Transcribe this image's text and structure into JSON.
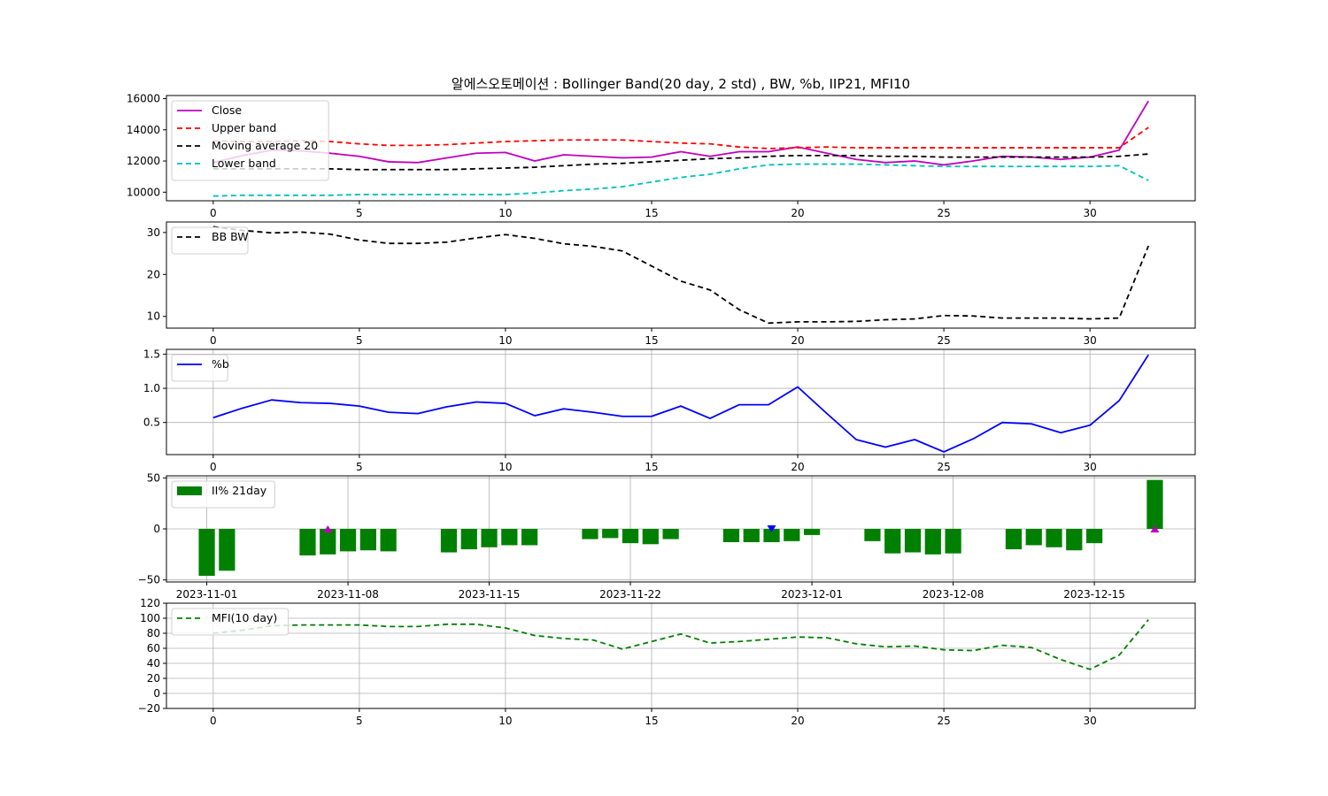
{
  "title": "알에스오토메이션 : Bollinger Band(20 day, 2 std) , BW, %b, IIP21, MFI10",
  "chart_data": [
    {
      "id": "price",
      "type": "line",
      "x": [
        0,
        1,
        2,
        3,
        4,
        5,
        6,
        7,
        8,
        9,
        10,
        11,
        12,
        13,
        14,
        15,
        16,
        17,
        18,
        19,
        20,
        21,
        22,
        23,
        24,
        25,
        26,
        27,
        28,
        29,
        30,
        31,
        32
      ],
      "xlim": [
        -1.6,
        33.6
      ],
      "xticks": [
        0,
        5,
        10,
        15,
        20,
        25,
        30
      ],
      "ylim": [
        9450,
        16200
      ],
      "yticks": [
        10000,
        12000,
        14000,
        16000
      ],
      "grid": false,
      "legend": "upper-left",
      "series": [
        {
          "name": "Close",
          "color": "#bf00bf",
          "dash": "",
          "values": [
            11900,
            12350,
            12700,
            12650,
            12500,
            12300,
            11950,
            11900,
            12200,
            12500,
            12550,
            12000,
            12400,
            12300,
            12200,
            12250,
            12600,
            12300,
            12600,
            12600,
            12900,
            12500,
            12100,
            11900,
            12000,
            11750,
            12000,
            12300,
            12250,
            12100,
            12250,
            12700,
            15850
          ]
        },
        {
          "name": "Upper band",
          "color": "#ff0000",
          "dash": "6,4",
          "values": [
            13300,
            13250,
            13250,
            13300,
            13250,
            13100,
            13000,
            13000,
            13050,
            13150,
            13250,
            13300,
            13350,
            13350,
            13350,
            13250,
            13150,
            13100,
            12900,
            12800,
            12850,
            12900,
            12850,
            12850,
            12850,
            12850,
            12850,
            12850,
            12850,
            12850,
            12850,
            12850,
            14150
          ]
        },
        {
          "name": "Moving average 20",
          "color": "#000000",
          "dash": "6,4",
          "values": [
            11500,
            11500,
            11500,
            11500,
            11500,
            11450,
            11450,
            11450,
            11450,
            11500,
            11550,
            11600,
            11700,
            11800,
            11850,
            11950,
            12050,
            12150,
            12200,
            12300,
            12350,
            12350,
            12350,
            12300,
            12300,
            12250,
            12250,
            12250,
            12250,
            12250,
            12250,
            12300,
            12450
          ]
        },
        {
          "name": "Lower band",
          "color": "#00bfbf",
          "dash": "6,4",
          "values": [
            9750,
            9800,
            9800,
            9800,
            9800,
            9850,
            9850,
            9850,
            9850,
            9850,
            9850,
            9950,
            10100,
            10200,
            10350,
            10650,
            10950,
            11150,
            11500,
            11750,
            11800,
            11800,
            11800,
            11750,
            11700,
            11650,
            11650,
            11650,
            11650,
            11650,
            11650,
            11700,
            10750
          ]
        }
      ]
    },
    {
      "id": "bw",
      "type": "line",
      "x": [
        0,
        1,
        2,
        3,
        4,
        5,
        6,
        7,
        8,
        9,
        10,
        11,
        12,
        13,
        14,
        15,
        16,
        17,
        18,
        19,
        20,
        21,
        22,
        23,
        24,
        25,
        26,
        27,
        28,
        29,
        30,
        31,
        32
      ],
      "xlim": [
        -1.6,
        33.6
      ],
      "xticks": [
        0,
        5,
        10,
        15,
        20,
        25,
        30
      ],
      "ylim": [
        7.2,
        32.5
      ],
      "yticks": [
        10,
        20,
        30
      ],
      "grid": false,
      "legend": "upper-left",
      "series": [
        {
          "name": "BB BW",
          "color": "#000000",
          "dash": "6,4",
          "values": [
            31.4,
            30.5,
            29.9,
            30.1,
            29.6,
            28.2,
            27.4,
            27.4,
            27.7,
            28.7,
            29.5,
            28.6,
            27.3,
            26.7,
            25.6,
            22.0,
            18.4,
            16.3,
            11.6,
            8.4,
            8.7,
            8.7,
            8.8,
            9.2,
            9.4,
            10.2,
            10.1,
            9.6,
            9.6,
            9.6,
            9.4,
            9.6,
            26.8
          ]
        }
      ]
    },
    {
      "id": "pctb",
      "type": "line",
      "x": [
        0,
        1,
        2,
        3,
        4,
        5,
        6,
        7,
        8,
        9,
        10,
        11,
        12,
        13,
        14,
        15,
        16,
        17,
        18,
        19,
        20,
        21,
        22,
        23,
        24,
        25,
        26,
        27,
        28,
        29,
        30,
        31,
        32
      ],
      "xlim": [
        -1.6,
        33.6
      ],
      "xticks": [
        0,
        5,
        10,
        15,
        20,
        25,
        30
      ],
      "ylim": [
        0.03,
        1.57
      ],
      "yticks": [
        0.5,
        1.0,
        1.5
      ],
      "ytick_labels": [
        "0.5",
        "1.0",
        "1.5"
      ],
      "grid": true,
      "legend": "upper-left",
      "series": [
        {
          "name": "%b",
          "color": "#0000ff",
          "dash": "",
          "values": [
            0.57,
            0.71,
            0.83,
            0.79,
            0.78,
            0.74,
            0.65,
            0.63,
            0.73,
            0.8,
            0.78,
            0.6,
            0.7,
            0.65,
            0.59,
            0.59,
            0.74,
            0.56,
            0.76,
            0.76,
            1.02,
            0.63,
            0.25,
            0.14,
            0.25,
            0.07,
            0.26,
            0.5,
            0.48,
            0.35,
            0.46,
            0.82,
            1.49
          ]
        }
      ]
    },
    {
      "id": "iip",
      "type": "bar",
      "x": [
        "2023-11-01",
        "2023-11-02",
        "2023-11-06",
        "2023-11-07",
        "2023-11-08",
        "2023-11-09",
        "2023-11-10",
        "2023-11-13",
        "2023-11-14",
        "2023-11-15",
        "2023-11-16",
        "2023-11-17",
        "2023-11-20",
        "2023-11-21",
        "2023-11-22",
        "2023-11-23",
        "2023-11-24",
        "2023-11-27",
        "2023-11-28",
        "2023-11-29",
        "2023-11-30",
        "2023-12-01",
        "2023-12-04",
        "2023-12-05",
        "2023-12-06",
        "2023-12-07",
        "2023-12-08",
        "2023-12-11",
        "2023-12-12",
        "2023-12-13",
        "2023-12-14",
        "2023-12-15",
        "2023-12-18"
      ],
      "xlim": [
        "2023-10-30",
        "2023-12-20"
      ],
      "xticks": [
        "2023-11-01",
        "2023-11-08",
        "2023-11-15",
        "2023-11-22",
        "2023-12-01",
        "2023-12-08",
        "2023-12-15"
      ],
      "ylim": [
        -52,
        52
      ],
      "yticks": [
        -50,
        0,
        50
      ],
      "ytick_labels": [
        "−50",
        "0",
        "50"
      ],
      "grid": true,
      "legend": "upper-left",
      "series": [
        {
          "name": "II% 21day",
          "color": "#008000",
          "values": [
            -46,
            -41,
            -26,
            -25,
            -22,
            -21,
            -22,
            -23,
            -20,
            -18,
            -16,
            -16,
            -10,
            -9,
            -14,
            -15,
            -10,
            -13,
            -13,
            -13,
            -12,
            -6,
            -12,
            -24,
            -23,
            -25,
            -24,
            -20,
            -16,
            -18,
            -21,
            -14,
            48
          ]
        }
      ],
      "markers": [
        {
          "date": "2023-11-07",
          "value": 0,
          "symbol": "triangle-up",
          "color": "#bf00bf"
        },
        {
          "date": "2023-11-29",
          "value": 0,
          "symbol": "triangle-down",
          "color": "#0000ff"
        },
        {
          "date": "2023-12-18",
          "value": 0,
          "symbol": "triangle-up",
          "color": "#bf00bf"
        }
      ]
    },
    {
      "id": "mfi",
      "type": "line",
      "x": [
        0,
        1,
        2,
        3,
        4,
        5,
        6,
        7,
        8,
        9,
        10,
        11,
        12,
        13,
        14,
        15,
        16,
        17,
        18,
        19,
        20,
        21,
        22,
        23,
        24,
        25,
        26,
        27,
        28,
        29,
        30,
        31,
        32
      ],
      "xlim": [
        -1.6,
        33.6
      ],
      "xticks": [
        0,
        5,
        10,
        15,
        20,
        25,
        30
      ],
      "ylim": [
        -20,
        120
      ],
      "yticks": [
        -20,
        0,
        20,
        40,
        60,
        80,
        100,
        120
      ],
      "ytick_labels": [
        "−20",
        "0",
        "20",
        "40",
        "60",
        "80",
        "100",
        "120"
      ],
      "grid": true,
      "legend": "upper-left",
      "series": [
        {
          "name": "MFI(10 day)",
          "color": "#008000",
          "dash": "6,4",
          "values": [
            80,
            84,
            90,
            91,
            91,
            91,
            89,
            89,
            92,
            92,
            87,
            77,
            73,
            71,
            59,
            69,
            79,
            67,
            69,
            72,
            75,
            74,
            66,
            62,
            63,
            58,
            57,
            64,
            61,
            45,
            32,
            51,
            98
          ]
        }
      ]
    }
  ]
}
